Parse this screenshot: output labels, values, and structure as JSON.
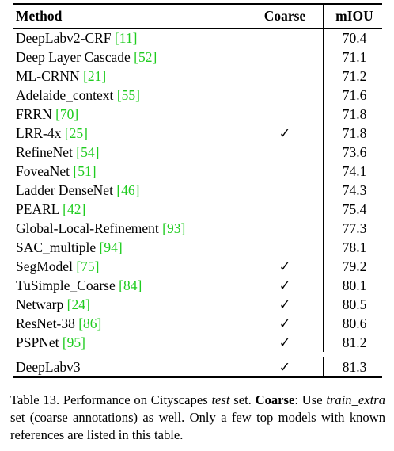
{
  "table": {
    "headers": {
      "method": "Method",
      "coarse": "Coarse",
      "miou": "mIOU"
    },
    "check_glyph": "✓",
    "rows": [
      {
        "name": "DeepLabv2-CRF",
        "ref": "[11]",
        "coarse": "",
        "miou": "70.4"
      },
      {
        "name": "Deep Layer Cascade",
        "ref": "[52]",
        "coarse": "",
        "miou": "71.1"
      },
      {
        "name": "ML-CRNN",
        "ref": "[21]",
        "coarse": "",
        "miou": "71.2"
      },
      {
        "name": "Adelaide_context",
        "ref": "[55]",
        "coarse": "",
        "miou": "71.6"
      },
      {
        "name": "FRRN",
        "ref": "[70]",
        "coarse": "",
        "miou": "71.8"
      },
      {
        "name": "LRR-4x",
        "ref": "[25]",
        "coarse": "✓",
        "miou": "71.8"
      },
      {
        "name": "RefineNet",
        "ref": "[54]",
        "coarse": "",
        "miou": "73.6"
      },
      {
        "name": "FoveaNet",
        "ref": "[51]",
        "coarse": "",
        "miou": "74.1"
      },
      {
        "name": "Ladder DenseNet",
        "ref": "[46]",
        "coarse": "",
        "miou": "74.3"
      },
      {
        "name": "PEARL",
        "ref": "[42]",
        "coarse": "",
        "miou": "75.4"
      },
      {
        "name": "Global-Local-Refinement",
        "ref": "[93]",
        "coarse": "",
        "miou": "77.3"
      },
      {
        "name": "SAC_multiple",
        "ref": "[94]",
        "coarse": "",
        "miou": "78.1"
      },
      {
        "name": "SegModel",
        "ref": "[75]",
        "coarse": "✓",
        "miou": "79.2"
      },
      {
        "name": "TuSimple_Coarse",
        "ref": "[84]",
        "coarse": "✓",
        "miou": "80.1"
      },
      {
        "name": "Netwarp",
        "ref": "[24]",
        "coarse": "✓",
        "miou": "80.5"
      },
      {
        "name": "ResNet-38",
        "ref": "[86]",
        "coarse": "✓",
        "miou": "80.6"
      },
      {
        "name": "PSPNet",
        "ref": "[95]",
        "coarse": "✓",
        "miou": "81.2"
      }
    ],
    "final_row": {
      "name": "DeepLabv3",
      "coarse": "✓",
      "miou": "81.3"
    }
  },
  "caption": {
    "p1": "Table 13. Performance on Cityscapes ",
    "p2": "test",
    "p3": " set. ",
    "p4": "Coarse",
    "p5": ": Use ",
    "p6": "train_extra",
    "p7": " set (coarse annotations) as well. Only a few top models with known references are listed in this table."
  },
  "colors": {
    "reference_link": "#1fcc1f",
    "text": "#000000"
  }
}
